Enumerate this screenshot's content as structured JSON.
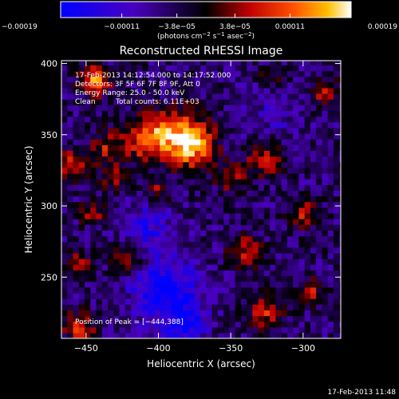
{
  "chart_data": {
    "type": "heatmap",
    "title": "Reconstructed RHESSI Image",
    "xlabel": "Heliocentric X (arcsec)",
    "ylabel": "Heliocentric Y (arcsec)",
    "xlim": [
      -467,
      -274
    ],
    "ylim": [
      207,
      402
    ],
    "x_ticks": [
      {
        "value": -450,
        "label": "−450"
      },
      {
        "value": -400,
        "label": "−400"
      },
      {
        "value": -350,
        "label": "−350"
      },
      {
        "value": -300,
        "label": "−300"
      }
    ],
    "y_ticks": [
      {
        "value": 250,
        "label": "250"
      },
      {
        "value": 300,
        "label": "300"
      },
      {
        "value": 350,
        "label": "350"
      },
      {
        "value": 400,
        "label": "400"
      }
    ],
    "colorbar": {
      "min": -0.00019,
      "max": 0.00019,
      "ticks": [
        {
          "value": -0.00019,
          "label": "−0.00019"
        },
        {
          "value": -0.00011,
          "label": "−0.00011"
        },
        {
          "value": -3.8e-05,
          "label": "−3.8e−05"
        },
        {
          "value": 3.8e-05,
          "label": "3.8e−05"
        },
        {
          "value": 0.00011,
          "label": "0.00011"
        },
        {
          "value": 0.00019,
          "label": "0.00019"
        }
      ],
      "unit_main": "(photons cm",
      "unit_sup1": "−2",
      "unit_mid": " s",
      "unit_sup2": "−1",
      "unit_end": " asec",
      "unit_sup3": "−2",
      "unit_close": ")"
    },
    "annotations": {
      "time_range": "17-Feb-2013 14:12:54.000 to 14:17:52.000",
      "detectors": "Detectors: 3F 5F 6F 7F 8F 9F, Att 0",
      "energy": "Energy Range: 25.0 - 50.0 keV",
      "method": "Clean",
      "counts": "Total counts: 6.11E+03",
      "peak": "Position of Peak = [−444,388]"
    },
    "peak": {
      "x": -444,
      "y": 388
    },
    "bright_sources": [
      {
        "x": -385,
        "y": 350,
        "intensity": 0.00016,
        "spread": 13
      },
      {
        "x": -408,
        "y": 348,
        "intensity": 0.00015,
        "spread": 11
      },
      {
        "x": -375,
        "y": 342,
        "intensity": 0.00013,
        "spread": 10
      },
      {
        "x": -444,
        "y": 388,
        "intensity": 0.00019,
        "spread": 7
      },
      {
        "x": -460,
        "y": 330,
        "intensity": 0.00012,
        "spread": 7
      },
      {
        "x": -435,
        "y": 342,
        "intensity": 0.0001,
        "spread": 8
      },
      {
        "x": -430,
        "y": 320,
        "intensity": 9e-05,
        "spread": 7
      },
      {
        "x": -445,
        "y": 296,
        "intensity": 0.0001,
        "spread": 6
      },
      {
        "x": -400,
        "y": 312,
        "intensity": 8e-05,
        "spread": 6
      },
      {
        "x": -350,
        "y": 320,
        "intensity": 9e-05,
        "spread": 7
      },
      {
        "x": -327,
        "y": 332,
        "intensity": 0.00012,
        "spread": 8
      },
      {
        "x": -300,
        "y": 295,
        "intensity": 0.00012,
        "spread": 7
      },
      {
        "x": -420,
        "y": 265,
        "intensity": 0.00011,
        "spread": 8
      },
      {
        "x": -455,
        "y": 260,
        "intensity": 0.0001,
        "spread": 6
      },
      {
        "x": -340,
        "y": 268,
        "intensity": 0.00011,
        "spread": 8
      },
      {
        "x": -327,
        "y": 225,
        "intensity": 0.00012,
        "spread": 8
      },
      {
        "x": -295,
        "y": 240,
        "intensity": 0.0001,
        "spread": 6
      },
      {
        "x": -455,
        "y": 215,
        "intensity": 0.00012,
        "spread": 8
      },
      {
        "x": -285,
        "y": 380,
        "intensity": 0.0001,
        "spread": 7
      },
      {
        "x": -320,
        "y": 390,
        "intensity": 8e-05,
        "spread": 7
      }
    ],
    "dark_sources": [
      {
        "x": -395,
        "y": 240,
        "intensity": -0.00015,
        "spread": 16
      },
      {
        "x": -410,
        "y": 285,
        "intensity": -9e-05,
        "spread": 12
      },
      {
        "x": -380,
        "y": 215,
        "intensity": -0.0001,
        "spread": 10
      },
      {
        "x": -320,
        "y": 370,
        "intensity": -5e-05,
        "spread": 14
      }
    ]
  },
  "footer": {
    "timestamp": "17-Feb-2013 11:48"
  }
}
